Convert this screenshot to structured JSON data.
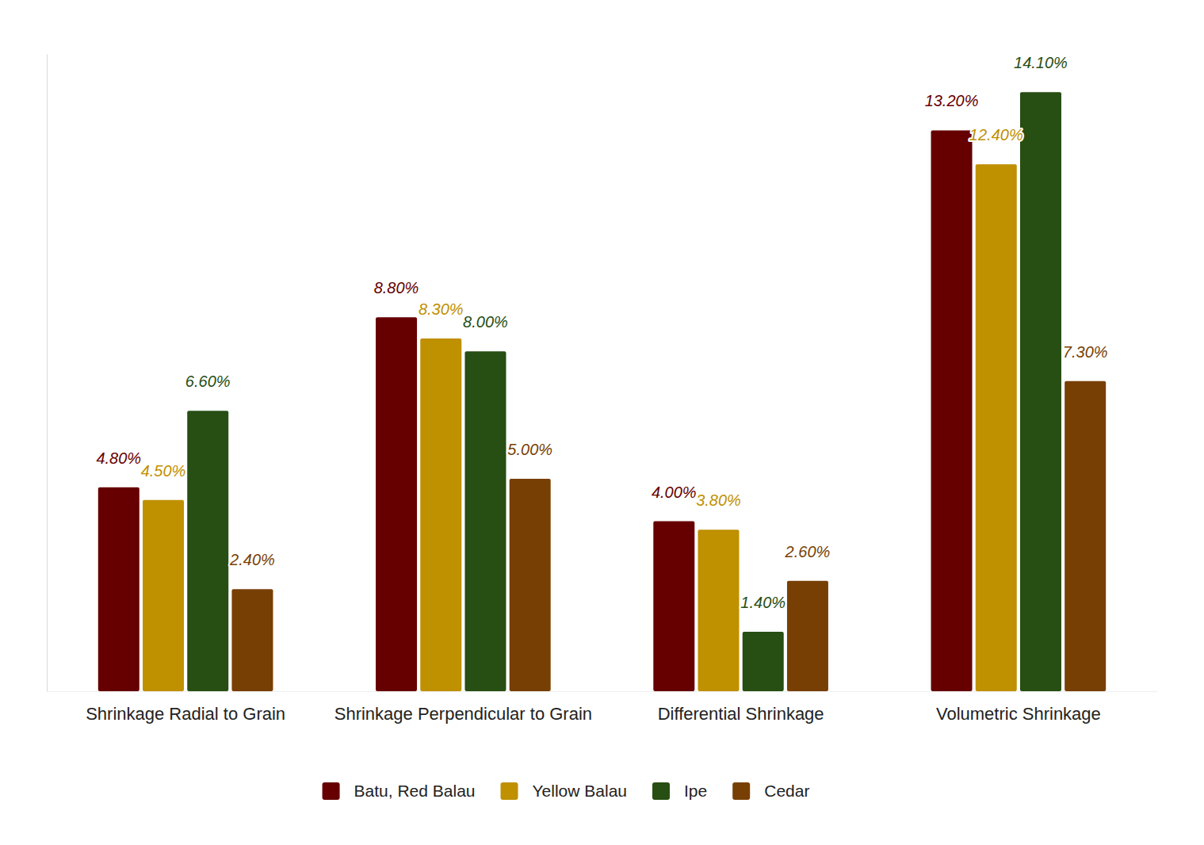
{
  "chart_data": {
    "type": "bar",
    "categories": [
      "Shrinkage Radial to Grain",
      "Shrinkage Perpendicular to Grain",
      "Differential Shrinkage",
      "Volumetric Shrinkage"
    ],
    "series": [
      {
        "name": "Batu, Red Balau",
        "color": "#660000",
        "values": [
          4.8,
          8.8,
          4.0,
          13.2
        ],
        "value_labels": [
          "4.80%",
          "8.80%",
          "4.00%",
          "13.20%"
        ]
      },
      {
        "name": "Yellow Balau",
        "color": "#bf9000",
        "values": [
          4.5,
          8.3,
          3.8,
          12.4
        ],
        "value_labels": [
          "4.50%",
          "8.30%",
          "3.80%",
          "12.40%"
        ]
      },
      {
        "name": "Ipe",
        "color": "#274e13",
        "values": [
          6.6,
          8.0,
          1.4,
          14.1
        ],
        "value_labels": [
          "6.60%",
          "8.00%",
          "1.40%",
          "14.10%"
        ]
      },
      {
        "name": "Cedar",
        "color": "#783f04",
        "values": [
          2.4,
          5.0,
          2.6,
          7.3
        ],
        "value_labels": [
          "2.40%",
          "5.00%",
          "2.60%",
          "7.30%"
        ]
      }
    ],
    "ylim": [
      0,
      15
    ],
    "yticks": [],
    "tick_labels": "x",
    "data_labels": true,
    "legend": "bottom",
    "grid": false
  }
}
